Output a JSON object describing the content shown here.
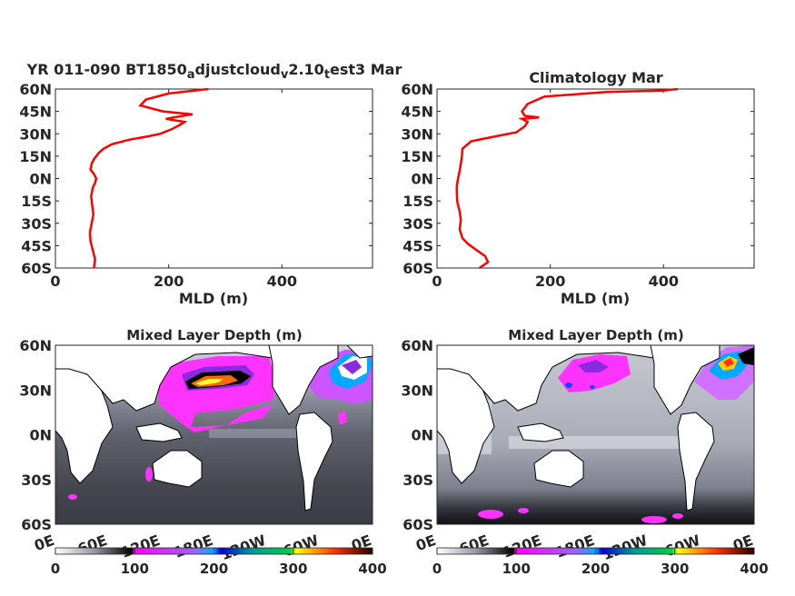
{
  "chart_data": [
    {
      "type": "line",
      "title_parts": [
        {
          "text": "YR 011-090 BT1850",
          "sub": false
        },
        {
          "text": "a",
          "sub": true
        },
        {
          "text": "djustcloud",
          "sub": false
        },
        {
          "text": "v",
          "sub": true
        },
        {
          "text": "2.10",
          "sub": false
        },
        {
          "text": "t",
          "sub": true
        },
        {
          "text": "est3 Mar",
          "sub": false
        }
      ],
      "xlabel": "MLD (m)",
      "xlim": [
        0,
        560
      ],
      "ylim": [
        -60,
        60
      ],
      "xticks": [
        0,
        200,
        400
      ],
      "xticklabels": [
        "0",
        "200",
        "400"
      ],
      "yticks": [
        60,
        45,
        30,
        15,
        0,
        -15,
        -30,
        -45,
        -60
      ],
      "yticklabels": [
        "60N",
        "45N",
        "30N",
        "15N",
        "0N",
        "15S",
        "30S",
        "45S",
        "60S"
      ],
      "series_color": "#ff0000",
      "x": [
        68,
        70,
        66,
        62,
        61,
        64,
        67,
        65,
        63,
        66,
        70,
        72,
        68,
        62,
        64,
        68,
        76,
        85,
        100,
        130,
        160,
        185,
        205,
        220,
        228,
        212,
        195,
        225,
        242,
        190,
        150,
        160,
        200,
        270
      ],
      "y": [
        -60,
        -54,
        -48,
        -42,
        -36,
        -30,
        -24,
        -18,
        -12,
        -6,
        -3,
        0,
        3,
        6,
        10,
        13,
        17,
        20,
        23,
        26,
        28,
        30,
        33,
        36,
        38,
        39,
        40,
        42,
        43,
        45,
        49,
        53,
        57,
        60
      ]
    },
    {
      "type": "line",
      "title": "Climatology Mar",
      "xlabel": "MLD (m)",
      "xlim": [
        0,
        560
      ],
      "ylim": [
        -60,
        60
      ],
      "xticks": [
        0,
        200,
        400
      ],
      "xticklabels": [
        "0",
        "200",
        "400"
      ],
      "yticks": [
        60,
        45,
        30,
        15,
        0,
        -15,
        -30,
        -45,
        -60
      ],
      "yticklabels": [
        "60N",
        "45N",
        "30N",
        "15N",
        "0N",
        "15S",
        "30S",
        "45S",
        "60S"
      ],
      "series_color": "#ff0000",
      "x": [
        75,
        90,
        85,
        70,
        55,
        45,
        40,
        42,
        40,
        36,
        35,
        35,
        37,
        40,
        42,
        44,
        45,
        60,
        100,
        140,
        155,
        160,
        150,
        180,
        155,
        150,
        160,
        190,
        300,
        400,
        425
      ],
      "y": [
        -60,
        -56,
        -52,
        -48,
        -44,
        -40,
        -34,
        -28,
        -22,
        -16,
        -10,
        -5,
        0,
        5,
        10,
        15,
        20,
        25,
        28,
        31,
        35,
        38,
        40,
        41,
        42,
        45,
        50,
        55,
        58,
        59,
        60
      ]
    },
    {
      "type": "heatmap",
      "title": "Mixed Layer Depth (m)",
      "xticklabels": [
        "0E",
        "60E",
        "120E",
        "180E",
        "120W",
        "60W",
        "0E"
      ],
      "yticklabels": [
        "60N",
        "30N",
        "0N",
        "30S",
        "60S"
      ],
      "colorbar": {
        "ticks": [
          0,
          100,
          200,
          300,
          400
        ],
        "ticklabels": [
          "0",
          "100",
          "200",
          "300",
          "400"
        ],
        "range": [
          0,
          400
        ]
      }
    },
    {
      "type": "heatmap",
      "title": "Mixed Layer Depth (m)",
      "xticklabels": [
        "0E",
        "60E",
        "120E",
        "180E",
        "120W",
        "60W",
        "0E"
      ],
      "yticklabels": [
        "60N",
        "30N",
        "0N",
        "30S",
        "60S"
      ],
      "colorbar": {
        "ticks": [
          0,
          100,
          200,
          300,
          400
        ],
        "ticklabels": [
          "0",
          "100",
          "200",
          "300",
          "400"
        ],
        "range": [
          0,
          400
        ]
      }
    }
  ]
}
